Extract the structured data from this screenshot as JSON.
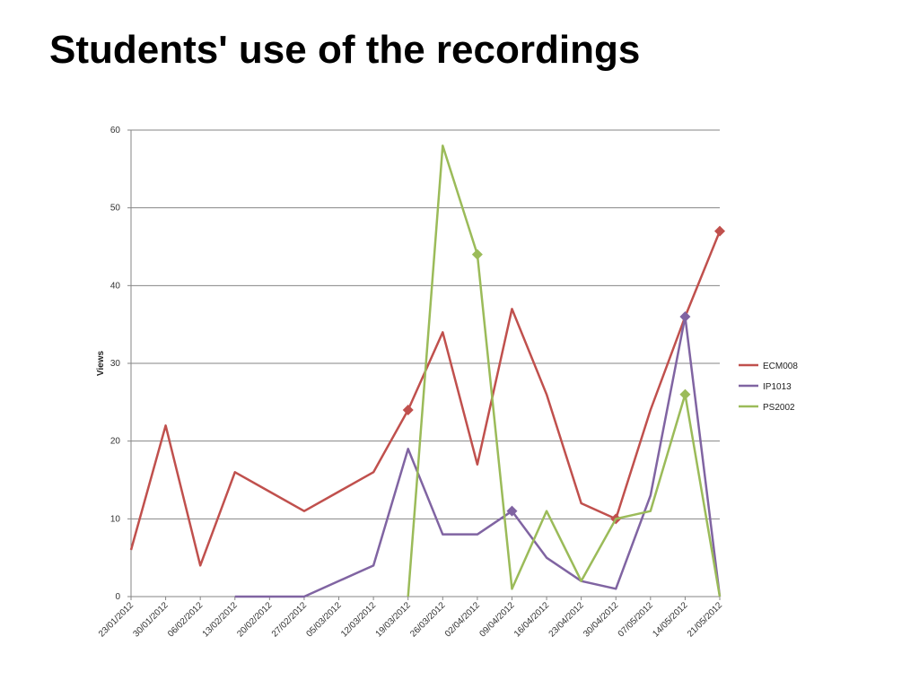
{
  "slide": {
    "title": "Students' use of the recordings"
  },
  "chart_data": {
    "type": "line",
    "title": "",
    "xlabel": "",
    "ylabel": "Views",
    "ylim": [
      0,
      60
    ],
    "yticks": [
      0,
      10,
      20,
      30,
      40,
      50,
      60
    ],
    "grid": true,
    "legend_position": "right",
    "categories": [
      "23/01/2012",
      "30/01/2012",
      "06/02/2012",
      "13/02/2012",
      "20/02/2012",
      "27/02/2012",
      "05/03/2012",
      "12/03/2012",
      "19/03/2012",
      "26/03/2012",
      "02/04/2012",
      "09/04/2012",
      "16/04/2012",
      "23/04/2012",
      "30/04/2012",
      "07/05/2012",
      "14/05/2012",
      "21/05/2012"
    ],
    "series": [
      {
        "name": "ECM008",
        "color": "#c0504d",
        "values": [
          6,
          22,
          4,
          16,
          13.5,
          11,
          13.5,
          16,
          24,
          34,
          17,
          37,
          26,
          12,
          10,
          24,
          36,
          47
        ],
        "marked_points": [
          8,
          14,
          17
        ]
      },
      {
        "name": "IP1013",
        "color": "#8064a2",
        "values": [
          null,
          null,
          null,
          0,
          0,
          0,
          2,
          4,
          19,
          8,
          8,
          11,
          5,
          2,
          1,
          13,
          36,
          0
        ],
        "marked_points": [
          11,
          16
        ]
      },
      {
        "name": "PS2002",
        "color": "#9bbb59",
        "values": [
          null,
          null,
          null,
          null,
          null,
          null,
          null,
          null,
          0,
          58,
          44,
          1,
          11,
          2,
          10,
          11,
          26,
          0
        ],
        "marked_points": [
          10,
          16
        ]
      }
    ]
  }
}
